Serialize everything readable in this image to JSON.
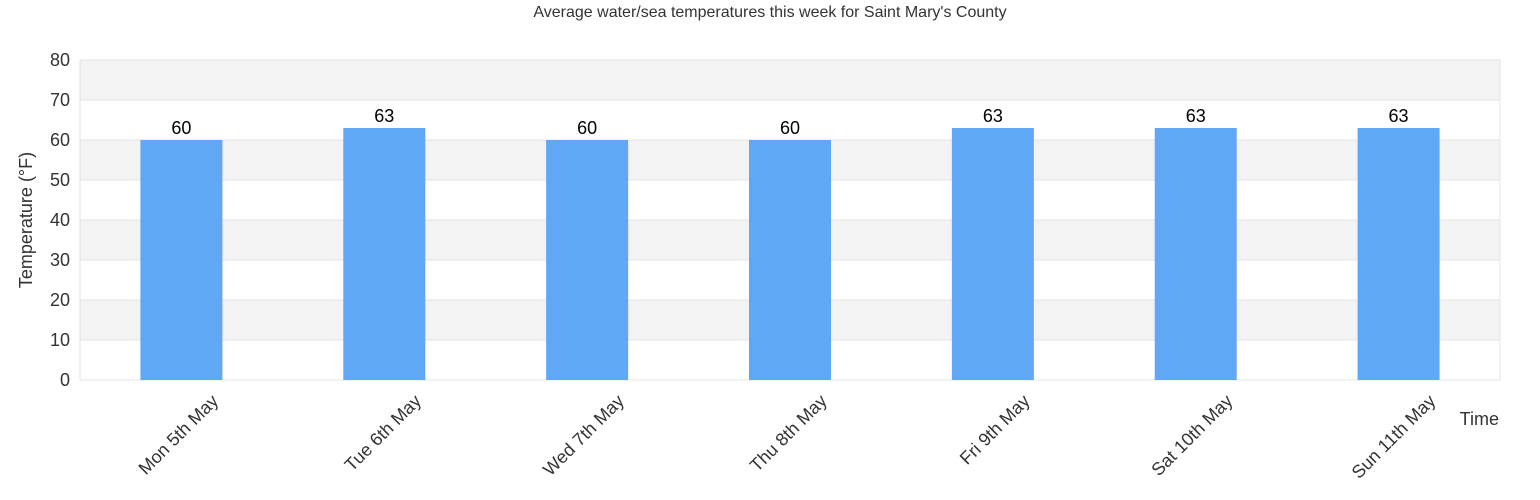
{
  "chart_data": {
    "type": "bar",
    "title": "Average water/sea temperatures this week for Saint Mary's County",
    "xlabel": "Time",
    "ylabel": "Temperature (°F)",
    "categories": [
      "Mon 5th May",
      "Tue 6th May",
      "Wed 7th May",
      "Thu 8th May",
      "Fri 9th May",
      "Sat 10th May",
      "Sun 11th May"
    ],
    "values": [
      60,
      63,
      60,
      60,
      63,
      63,
      63
    ],
    "ylim": [
      0,
      80
    ],
    "yticks": [
      0,
      10,
      20,
      30,
      40,
      50,
      60,
      70,
      80
    ],
    "ytick_labels": [
      "0",
      "10",
      "20",
      "30",
      "40",
      "50",
      "60",
      "70",
      "80"
    ],
    "data_labels": [
      "60",
      "63",
      "60",
      "60",
      "63",
      "63",
      "63"
    ],
    "grid": true,
    "legend": "none",
    "colors": {
      "bar": "#60a8f5",
      "band_alt": "#f3f3f3",
      "band": "#ffffff",
      "gridline": "#e3e3e3",
      "axis": "#cccccc",
      "text": "#333333"
    }
  }
}
